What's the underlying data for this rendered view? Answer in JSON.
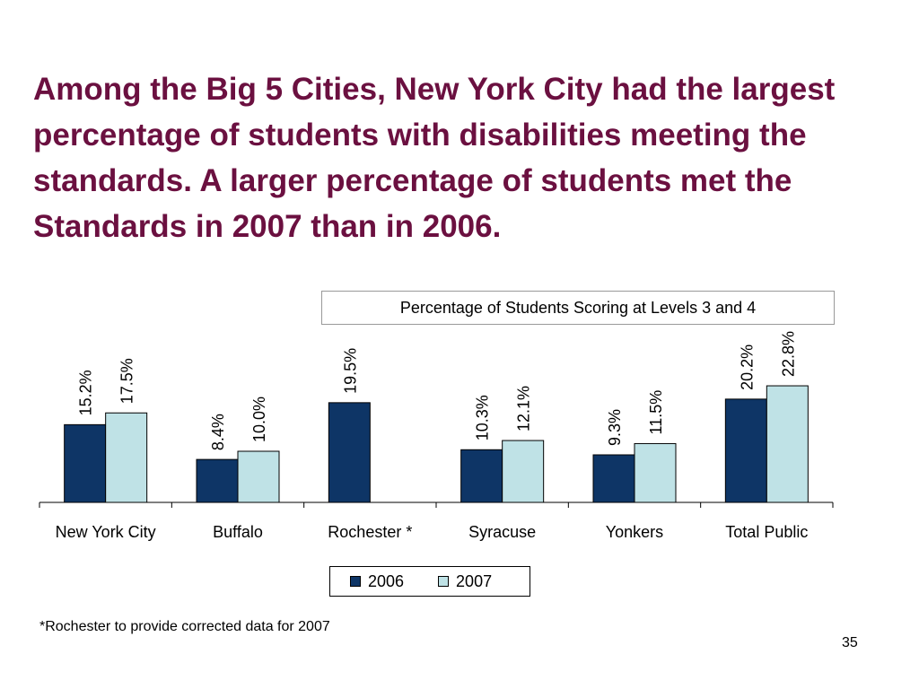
{
  "slide": {
    "title": "Among the Big 5 Cities, New York City had the largest percentage of students with disabilities meeting the standards. A larger percentage of students met the Standards in 2007 than in 2006.",
    "footnote": "*Rochester to provide corrected data for 2007",
    "page_number": "35"
  },
  "colors": {
    "title": "#6b1040",
    "series_2006": "#0e3566",
    "series_2007": "#bfe2e6"
  },
  "chart_data": {
    "type": "bar",
    "title": "Percentage of Students Scoring at Levels 3 and 4",
    "categories": [
      "New York City",
      "Buffalo",
      "Rochester *",
      "Syracuse",
      "Yonkers",
      "Total Public"
    ],
    "series": [
      {
        "name": "2006",
        "values": [
          15.2,
          8.4,
          19.5,
          10.3,
          9.3,
          20.2
        ],
        "labels": [
          "15.2%",
          "8.4%",
          "19.5%",
          "10.3%",
          "9.3%",
          "20.2%"
        ]
      },
      {
        "name": "2007",
        "values": [
          17.5,
          10.0,
          null,
          12.1,
          11.5,
          22.8
        ],
        "labels": [
          "17.5%",
          "10.0%",
          "",
          "12.1%",
          "11.5%",
          "22.8%"
        ]
      }
    ],
    "ylim": [
      0,
      60
    ],
    "legend_position": "bottom",
    "grid": false
  }
}
